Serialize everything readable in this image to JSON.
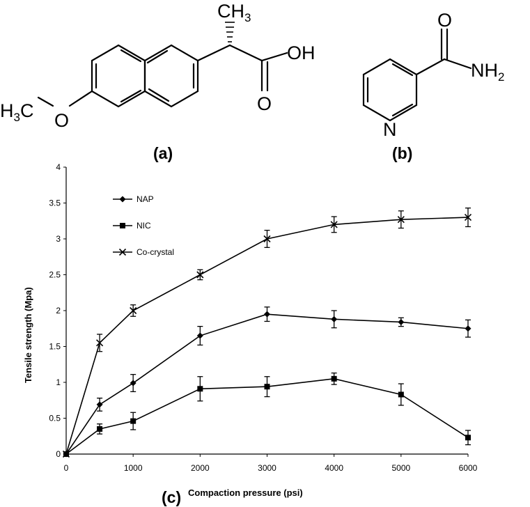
{
  "panels": {
    "a": {
      "label": "(a)"
    },
    "b": {
      "label": "(b)"
    },
    "c": {
      "label": "(c)"
    }
  },
  "structure_a": {
    "atoms": {
      "methyl_top": "CH",
      "methyl_top_sub": "3",
      "hydroxyl": "OH",
      "carbonyl_o": "O",
      "methoxy_c": "H",
      "methoxy_sub": "3",
      "methoxy_c2": "C",
      "methoxy_o": "O"
    }
  },
  "structure_b": {
    "atoms": {
      "carbonyl_o": "O",
      "amine": "NH",
      "amine_sub": "2",
      "ring_n": "N"
    }
  },
  "chart_data": {
    "type": "line",
    "xlabel": "Compaction pressure (psi)",
    "ylabel": "Tensile strength (Mpa)",
    "xlim": [
      0,
      6000
    ],
    "ylim": [
      0,
      4
    ],
    "xticks": [
      "0",
      "1000",
      "2000",
      "3000",
      "4000",
      "5000",
      "6000"
    ],
    "yticks": [
      "0",
      "0.5",
      "1",
      "1.5",
      "2",
      "2.5",
      "3",
      "3.5",
      "4"
    ],
    "grid": false,
    "legend_position": "top-left",
    "x": [
      0,
      500,
      1000,
      2000,
      3000,
      4000,
      5000,
      6000
    ],
    "series": [
      {
        "name": "NAP",
        "marker": "diamond",
        "values": [
          0,
          0.69,
          0.99,
          1.65,
          1.95,
          1.88,
          1.84,
          1.75
        ],
        "errors": [
          0,
          0.09,
          0.12,
          0.13,
          0.1,
          0.12,
          0.06,
          0.12
        ]
      },
      {
        "name": "NIC",
        "marker": "square",
        "values": [
          0,
          0.35,
          0.46,
          0.91,
          0.94,
          1.05,
          0.83,
          0.23
        ],
        "errors": [
          0,
          0.07,
          0.12,
          0.17,
          0.14,
          0.08,
          0.15,
          0.1
        ]
      },
      {
        "name": "Co-crystal",
        "marker": "cross",
        "values": [
          0,
          1.55,
          2.0,
          2.5,
          3.0,
          3.2,
          3.27,
          3.3
        ],
        "errors": [
          0,
          0.12,
          0.08,
          0.07,
          0.12,
          0.11,
          0.12,
          0.13
        ]
      }
    ]
  }
}
